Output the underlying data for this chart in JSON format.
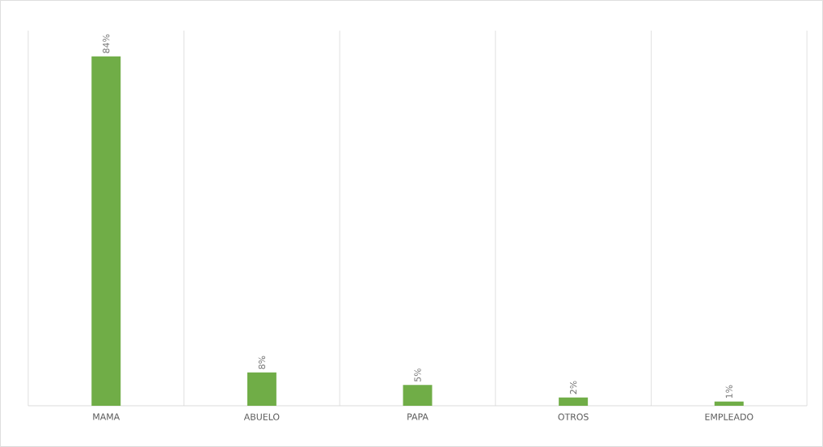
{
  "chart_data": {
    "type": "bar",
    "categories": [
      "MAMA",
      "ABUELO",
      "PAPA",
      "OTROS",
      "EMPLEADO"
    ],
    "values": [
      84,
      8,
      5,
      2,
      1
    ],
    "value_labels": [
      "84%",
      "8%",
      "5%",
      "2%",
      "1%"
    ],
    "color": "#70ad47",
    "grid": "x"
  }
}
